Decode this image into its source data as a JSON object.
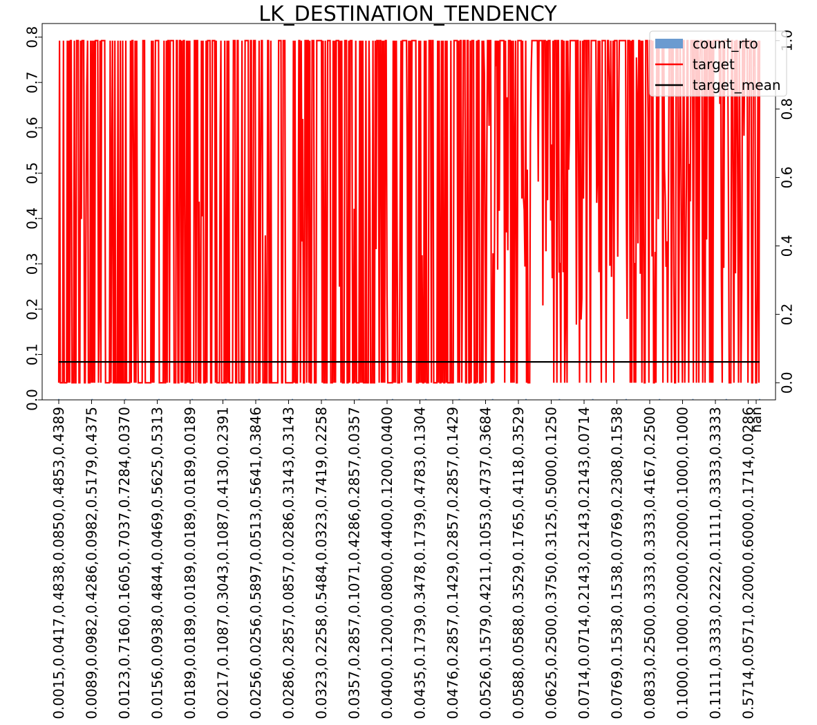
{
  "chart_data": {
    "type": "line",
    "title": "LK_DESTINATION_TENDENCY",
    "xlabel": "",
    "ylabel_left": "",
    "ylabel_right": "",
    "x_tick_labels": [
      "0.0015,0.0417,0.4838,0.0850,0.4853,0.4389",
      "0.0089,0.0982,0.4286,0.0982,0.5179,0.4375",
      "0.0123,0.7160,0.1605,0.7037,0.7284,0.0370",
      "0.0156,0.0938,0.4844,0.0469,0.5625,0.5313",
      "0.0189,0.0189,0.0189,0.0189,0.0189,0.0189",
      "0.0217,0.1087,0.3043,0.1087,0.4130,0.2391",
      "0.0256,0.0256,0.5897,0.0513,0.5641,0.3846",
      "0.0286,0.2857,0.0857,0.0286,0.3143,0.3143",
      "0.0323,0.2258,0.5484,0.0323,0.7419,0.2258",
      "0.0357,0.2857,0.1071,0.4286,0.2857,0.0357",
      "0.0400,0.1200,0.0800,0.4400,0.1200,0.0400",
      "0.0435,0.1739,0.3478,0.1739,0.4783,0.1304",
      "0.0476,0.2857,0.1429,0.2857,0.2857,0.1429",
      "0.0526,0.1579,0.4211,0.1053,0.4737,0.3684",
      "0.0588,0.0588,0.3529,0.1765,0.4118,0.3529",
      "0.0625,0.2500,0.3750,0.3125,0.5000,0.1250",
      "0.0714,0.0714,0.2143,0.2143,0.2143,0.0714",
      "0.0769,0.1538,0.1538,0.0769,0.2308,0.1538",
      "0.0833,0.2500,0.3333,0.3333,0.4167,0.2500",
      "0.1000,0.1000,0.2000,0.2000,0.1000,0.1000",
      "0.1111,0.3333,0.2222,0.1111,0.3333,0.3333",
      "0.5714,0.0571,0.2000,0.6000,0.1714,0.0286"
    ],
    "x_end_label": "nan",
    "left_axis": {
      "ylim": [
        0,
        0.83
      ],
      "ticks": [
        "0.0",
        "0.1",
        "0.2",
        "0.3",
        "0.4",
        "0.5",
        "0.6",
        "0.7",
        "0.8"
      ]
    },
    "right_axis": {
      "ylim": [
        -0.05,
        1.05
      ],
      "ticks": [
        "0.0",
        "0.2",
        "0.4",
        "0.6",
        "0.8",
        "1.0"
      ]
    },
    "legend": {
      "placement": "top-right",
      "entries": [
        "count_rto",
        "target",
        "target_mean"
      ]
    },
    "series": [
      {
        "name": "count_rto",
        "kind": "bar",
        "axis": "left",
        "color": "#6b9bd0",
        "value_range": [
          0,
          0.01
        ]
      },
      {
        "name": "target",
        "kind": "line",
        "axis": "right",
        "color": "#ff0000",
        "values_range": [
          0,
          1
        ],
        "note_levels": [
          0.0,
          0.333,
          0.5,
          0.6,
          0.75,
          1.0
        ]
      },
      {
        "name": "target_mean",
        "kind": "line",
        "axis": "right",
        "color": "#000000",
        "value": 0.061
      }
    ],
    "grid": false
  }
}
